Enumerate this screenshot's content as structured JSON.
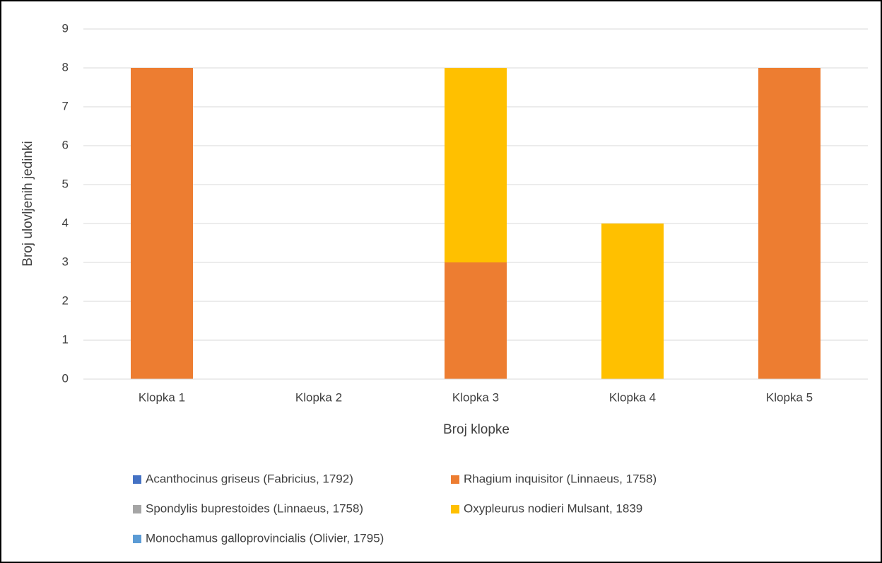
{
  "chart_data": {
    "type": "stacked_bar",
    "xlabel": "Broj klopke",
    "ylabel": "Broj ulovljenih jedinki",
    "categories": [
      "Klopka 1",
      "Klopka 2",
      "Klopka 3",
      "Klopka 4",
      "Klopka 5"
    ],
    "series": [
      {
        "name": "Acanthocinus griseus (Fabricius, 1792)",
        "color": "#4472c4",
        "values": [
          0,
          0,
          0,
          0,
          0
        ]
      },
      {
        "name": "Rhagium inquisitor (Linnaeus, 1758)",
        "color": "#ed7d31",
        "values": [
          8,
          0,
          3,
          0,
          8
        ]
      },
      {
        "name": "Spondylis buprestoides (Linnaeus, 1758)",
        "color": "#a5a5a5",
        "values": [
          0,
          0,
          0,
          0,
          0
        ]
      },
      {
        "name": "Oxypleurus nodieri Mulsant, 1839",
        "color": "#ffc000",
        "values": [
          0,
          0,
          5,
          4,
          0
        ]
      },
      {
        "name": "Monochamus galloprovincialis (Olivier, 1795)",
        "color": "#5b9bd5",
        "values": [
          0,
          0,
          0,
          0,
          0
        ]
      }
    ],
    "ylim": [
      0,
      9
    ],
    "yticks": [
      0,
      1,
      2,
      3,
      4,
      5,
      6,
      7,
      8,
      9
    ],
    "grid": true,
    "legend": "bottom"
  }
}
